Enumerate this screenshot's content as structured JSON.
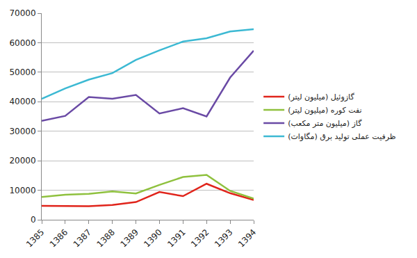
{
  "chart_data": {
    "type": "line",
    "categories": [
      "1385",
      "1386",
      "1387",
      "1388",
      "1389",
      "1390",
      "1391",
      "1392",
      "1393",
      "1394"
    ],
    "series": [
      {
        "name": "گازوئیل (میلیون لیتر)",
        "color": "#e0241b",
        "values": [
          4700,
          4600,
          4600,
          5000,
          6000,
          9400,
          8000,
          12200,
          9000,
          6700
        ]
      },
      {
        "name": "نفت کوره (میلیون لیتر)",
        "color": "#8fc13e",
        "values": [
          7700,
          8500,
          8800,
          9600,
          8900,
          11800,
          14500,
          15200,
          9800,
          7200
        ]
      },
      {
        "name": "گاز (میلیون متر مکعب)",
        "color": "#6a4aa5",
        "values": [
          33500,
          35200,
          41600,
          41000,
          42300,
          36000,
          37800,
          35000,
          48200,
          57300
        ]
      },
      {
        "name": "ظرفیت عملی تولید برق (مگاوات)",
        "color": "#3cb9d3",
        "values": [
          41000,
          44500,
          47500,
          49700,
          54200,
          57400,
          60400,
          61500,
          63800,
          64600
        ]
      }
    ],
    "ylim": [
      0,
      70000
    ],
    "yticks": [
      0,
      10000,
      20000,
      30000,
      40000,
      50000,
      60000,
      70000
    ],
    "grid": true,
    "legend": "right"
  }
}
